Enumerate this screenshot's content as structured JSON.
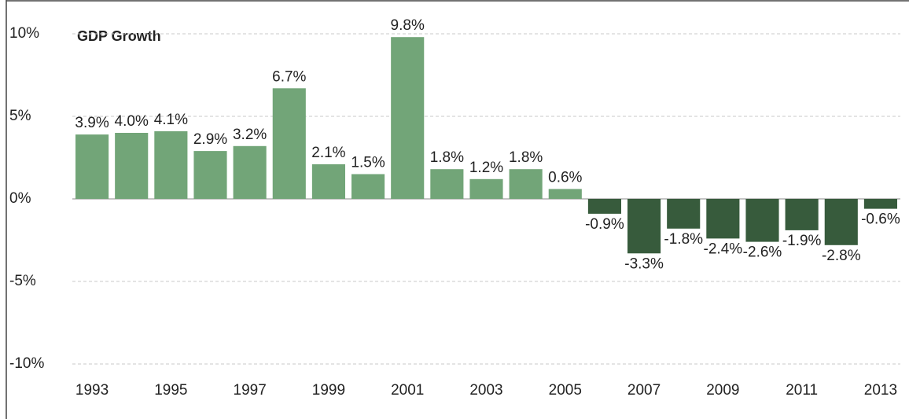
{
  "chart_data": {
    "type": "bar",
    "title": "GDP Growth",
    "categories": [
      "1993",
      null,
      "1995",
      null,
      "1997",
      null,
      "1999",
      null,
      "2001",
      null,
      "2003",
      null,
      "2005",
      null,
      "2007",
      null,
      "2009",
      null,
      "2011",
      null,
      "2013"
    ],
    "values": [
      3.9,
      4.0,
      4.1,
      2.9,
      3.2,
      6.7,
      2.1,
      1.5,
      9.8,
      1.8,
      1.2,
      1.8,
      0.6,
      -0.9,
      -3.3,
      -1.8,
      -2.4,
      -2.6,
      -1.9,
      -2.8,
      -0.6
    ],
    "value_labels": [
      "3.9%",
      "4.0%",
      "4.1%",
      "2.9%",
      "3.2%",
      "6.7%",
      "2.1%",
      "1.5%",
      "9.8%",
      "1.8%",
      "1.2%",
      "1.8%",
      "0.6%",
      "-0.9%",
      "-3.3%",
      "-1.8%",
      "-2.4%",
      "-2.6%",
      "-1.9%",
      "-2.8%",
      "-0.6%"
    ],
    "positive_color": "#72a578",
    "negative_color": "#375b3c",
    "ylim": [
      -10,
      10
    ],
    "yticks": [
      {
        "value": -10,
        "label": "-10%"
      },
      {
        "value": -5,
        "label": "-5%"
      },
      {
        "value": 0,
        "label": "0%"
      },
      {
        "value": 5,
        "label": "5%"
      },
      {
        "value": 10,
        "label": "10%"
      }
    ],
    "grid": true
  }
}
